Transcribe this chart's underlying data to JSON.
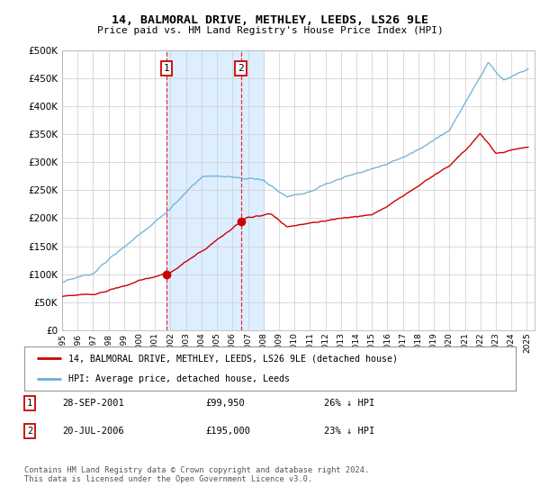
{
  "title": "14, BALMORAL DRIVE, METHLEY, LEEDS, LS26 9LE",
  "subtitle": "Price paid vs. HM Land Registry's House Price Index (HPI)",
  "ylim": [
    0,
    500000
  ],
  "yticks": [
    0,
    50000,
    100000,
    150000,
    200000,
    250000,
    300000,
    350000,
    400000,
    450000,
    500000
  ],
  "xlim_start": 1995.0,
  "xlim_end": 2025.5,
  "transaction1": {
    "date_num": 2001.75,
    "price": 99950
  },
  "transaction2": {
    "date_num": 2006.54,
    "price": 195000
  },
  "hpi_color": "#6baed6",
  "price_color": "#cc0000",
  "shade_color": "#ddeeff",
  "footnote": "Contains HM Land Registry data © Crown copyright and database right 2024.\nThis data is licensed under the Open Government Licence v3.0.",
  "legend_entries": [
    {
      "label": "14, BALMORAL DRIVE, METHLEY, LEEDS, LS26 9LE (detached house)",
      "color": "#cc0000"
    },
    {
      "label": "HPI: Average price, detached house, Leeds",
      "color": "#6baed6"
    }
  ],
  "table_rows": [
    {
      "num": "1",
      "date": "28-SEP-2001",
      "price": "£99,950",
      "note": "26% ↓ HPI"
    },
    {
      "num": "2",
      "date": "20-JUL-2006",
      "price": "£195,000",
      "note": "23% ↓ HPI"
    }
  ],
  "background_color": "#ffffff",
  "grid_color": "#cccccc"
}
